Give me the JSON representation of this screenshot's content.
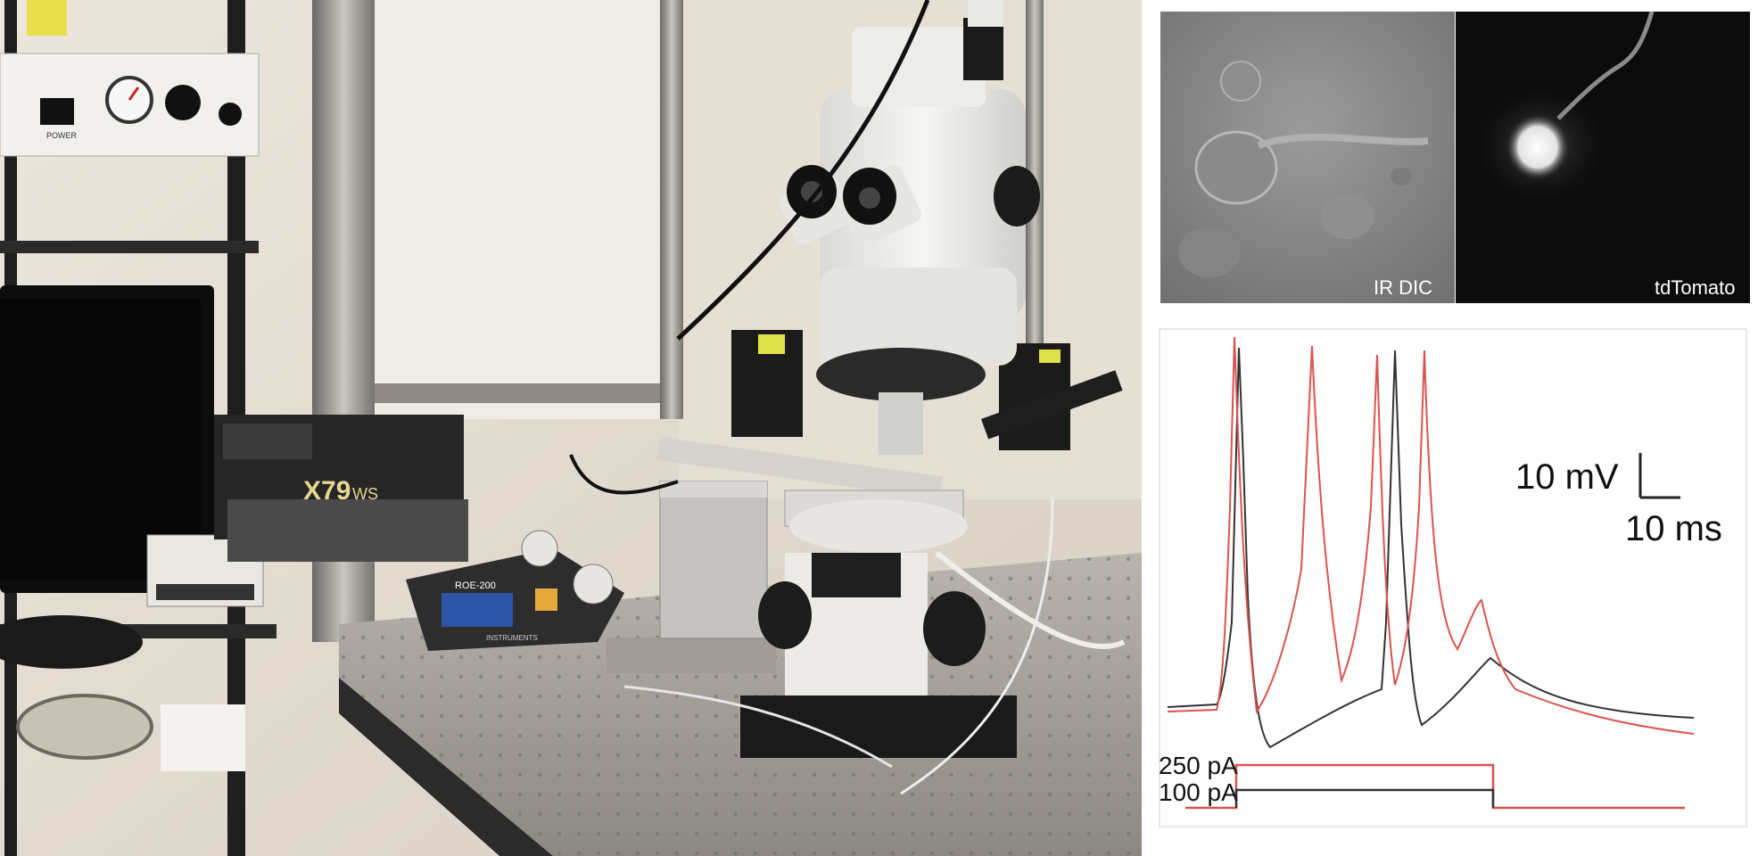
{
  "photo": {
    "device_label": "ROE-200",
    "device_brand": "INSTRUMENTS",
    "box_label_1": "X79",
    "box_label_2": "WS",
    "power_label": "POWER"
  },
  "micrographs": {
    "left_label": "IR DIC",
    "right_label": "tdTomato"
  },
  "traces": {
    "voltage_scale": "10 mV",
    "time_scale": "10 ms",
    "stim_high": "250 pA",
    "stim_low": "100 pA",
    "colors": {
      "high": "#d9534f",
      "low": "#333333"
    }
  }
}
